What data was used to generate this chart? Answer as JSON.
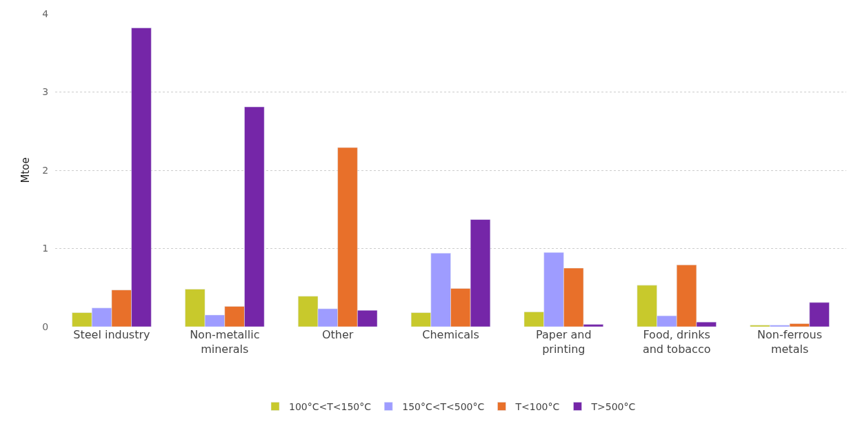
{
  "chart_data": {
    "type": "bar",
    "ylabel": "Mtoe",
    "categories": [
      "Steel industry",
      "Non-metallic minerals",
      "Other",
      "Chemicals",
      "Paper and printing",
      "Food, drinks and tobacco",
      "Non-ferrous metals"
    ],
    "series": [
      {
        "name": "100°C<T<150°C",
        "color": "#c8c92c",
        "values": [
          0.18,
          0.48,
          0.39,
          0.18,
          0.19,
          0.53,
          0.02
        ]
      },
      {
        "name": "150°C<T<500°C",
        "color": "#9e9cff",
        "values": [
          0.24,
          0.15,
          0.23,
          0.94,
          0.95,
          0.14,
          0.02
        ]
      },
      {
        "name": "T<100°C",
        "color": "#e8702a",
        "values": [
          0.47,
          0.26,
          2.29,
          0.49,
          0.75,
          0.79,
          0.04
        ]
      },
      {
        "name": "T>500°C",
        "color": "#7526a8",
        "values": [
          3.82,
          2.81,
          0.21,
          1.37,
          0.03,
          0.06,
          0.31
        ]
      }
    ],
    "ylim": [
      0,
      4
    ],
    "yticks": [
      0,
      1,
      2,
      3,
      4
    ],
    "grid": "y",
    "legend": "bottom"
  }
}
